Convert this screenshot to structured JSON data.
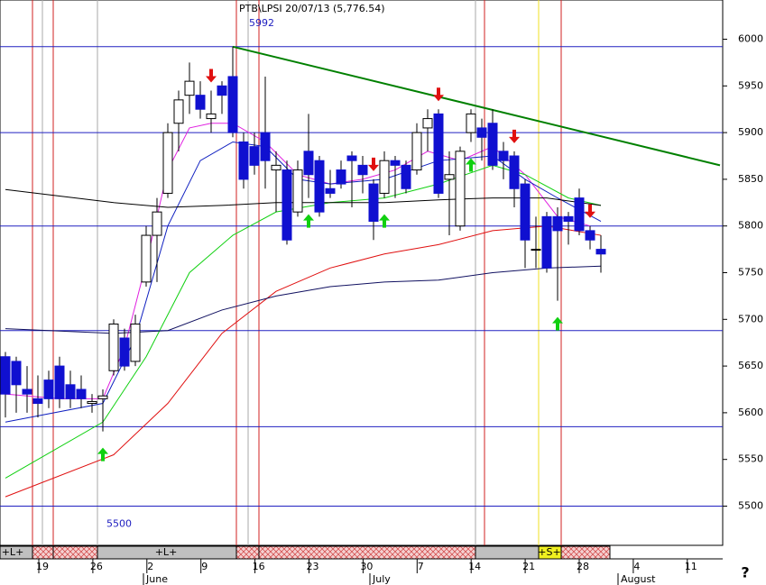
{
  "chart_data": {
    "type": "candlestick",
    "title": "PTB\\LPSI 20/07/13 (5,776.54)",
    "open": [
      5660,
      5655,
      5625,
      5615,
      5635,
      5650,
      5630,
      5625,
      5610,
      5615,
      5645,
      5680,
      5655,
      5740,
      5790,
      5835,
      5910,
      5940,
      5940,
      5915,
      5950,
      5960,
      5890,
      5885,
      5900,
      5860,
      5860,
      5815,
      5880,
      5870,
      5840,
      5860,
      5875,
      5865,
      5845,
      5835,
      5870,
      5865,
      5860,
      5905,
      5920,
      5850,
      5800,
      5900,
      5905,
      5910,
      5880,
      5875,
      5845,
      5775,
      5810,
      5810,
      5810,
      5830,
      5795,
      5775
    ],
    "high": [
      5665,
      5660,
      5650,
      5640,
      5645,
      5660,
      5645,
      5640,
      5620,
      5625,
      5700,
      5690,
      5705,
      5800,
      5830,
      5910,
      5945,
      5975,
      5955,
      5945,
      5955,
      5992,
      5900,
      5900,
      5960,
      5880,
      5870,
      5870,
      5920,
      5875,
      5860,
      5870,
      5880,
      5875,
      5850,
      5880,
      5875,
      5870,
      5910,
      5925,
      5925,
      5880,
      5885,
      5925,
      5915,
      5925,
      5890,
      5880,
      5850,
      5810,
      5815,
      5820,
      5815,
      5840,
      5800,
      5790
    ],
    "low": [
      5595,
      5600,
      5600,
      5595,
      5605,
      5605,
      5605,
      5605,
      5600,
      5580,
      5640,
      5645,
      5650,
      5735,
      5740,
      5830,
      5880,
      5920,
      5915,
      5900,
      5920,
      5895,
      5840,
      5855,
      5840,
      5815,
      5780,
      5810,
      5830,
      5810,
      5830,
      5840,
      5820,
      5835,
      5785,
      5830,
      5830,
      5835,
      5855,
      5880,
      5830,
      5790,
      5795,
      5890,
      5870,
      5860,
      5850,
      5820,
      5755,
      5755,
      5750,
      5720,
      5780,
      5790,
      5775,
      5750
    ],
    "close": [
      5620,
      5630,
      5620,
      5610,
      5615,
      5615,
      5615,
      5615,
      5612,
      5618,
      5695,
      5650,
      5695,
      5790,
      5815,
      5900,
      5935,
      5955,
      5925,
      5920,
      5940,
      5900,
      5850,
      5865,
      5870,
      5865,
      5785,
      5860,
      5855,
      5815,
      5835,
      5845,
      5870,
      5855,
      5805,
      5870,
      5865,
      5840,
      5900,
      5915,
      5835,
      5855,
      5880,
      5920,
      5895,
      5865,
      5870,
      5840,
      5785,
      5775,
      5755,
      5795,
      5805,
      5795,
      5785,
      5770
    ],
    "up_color": "#ffffff",
    "down_color": "#1010d0",
    "lines": [
      {
        "color": "#e020e0",
        "x": [
          0,
          5,
          9,
          11,
          13,
          15,
          17,
          19,
          21,
          24,
          27,
          30,
          33,
          36,
          39,
          42,
          45,
          48,
          51,
          54
        ],
        "values": [
          5620,
          5615,
          5615,
          5670,
          5760,
          5860,
          5905,
          5910,
          5910,
          5890,
          5855,
          5845,
          5850,
          5860,
          5880,
          5870,
          5885,
          5855,
          5810,
          5800
        ]
      },
      {
        "color": "#1020c0",
        "x": [
          0,
          9,
          12,
          15,
          18,
          21,
          24,
          27,
          30,
          35,
          40,
          45,
          48,
          51,
          55
        ],
        "values": [
          5590,
          5610,
          5680,
          5800,
          5870,
          5890,
          5885,
          5850,
          5845,
          5850,
          5870,
          5875,
          5850,
          5830,
          5805
        ]
      },
      {
        "color": "#10d010",
        "x": [
          0,
          9,
          13,
          17,
          21,
          25,
          30,
          35,
          40,
          45,
          48,
          52,
          55
        ],
        "values": [
          5530,
          5590,
          5660,
          5750,
          5790,
          5815,
          5825,
          5830,
          5845,
          5865,
          5855,
          5830,
          5822
        ]
      },
      {
        "color": "#e01010",
        "x": [
          0,
          10,
          15,
          20,
          25,
          30,
          35,
          40,
          45,
          50,
          55
        ],
        "values": [
          5510,
          5555,
          5610,
          5685,
          5730,
          5755,
          5770,
          5780,
          5795,
          5800,
          5790
        ]
      },
      {
        "color": "#101060",
        "x": [
          0,
          10,
          15,
          20,
          25,
          30,
          35,
          40,
          45,
          50,
          55
        ],
        "values": [
          5690,
          5685,
          5688,
          5710,
          5725,
          5735,
          5740,
          5742,
          5750,
          5755,
          5757
        ]
      },
      {
        "color": "#000000",
        "x": [
          0,
          10,
          15,
          20,
          25,
          30,
          35,
          40,
          45,
          50,
          55
        ],
        "values": [
          5839,
          5825,
          5820,
          5822,
          5825,
          5825,
          5825,
          5828,
          5830,
          5830,
          5822
        ]
      }
    ],
    "trendline": {
      "color": "#008000",
      "x": [
        21,
        66
      ],
      "values": [
        5992,
        5865
      ]
    },
    "hlines": [
      5992,
      5900,
      5800,
      5688,
      5585,
      5500
    ],
    "down_arrows": [
      19,
      34,
      40,
      47,
      54
    ],
    "up_arrows": [
      9,
      28,
      35,
      43,
      51
    ],
    "ylim": [
      5458,
      6042
    ],
    "yticks": [
      5500,
      5550,
      5600,
      5650,
      5700,
      5750,
      5800,
      5850,
      5900,
      5950,
      6000
    ],
    "xtick_labels": [
      "19",
      "26",
      "2",
      "9",
      "16",
      "23",
      "30",
      "7",
      "14",
      "21",
      "28",
      "4",
      "11"
    ],
    "months": [
      "June",
      "July",
      "August"
    ],
    "strip_labels": [
      "+L+",
      "+L+",
      "+S+"
    ],
    "help": "?"
  }
}
